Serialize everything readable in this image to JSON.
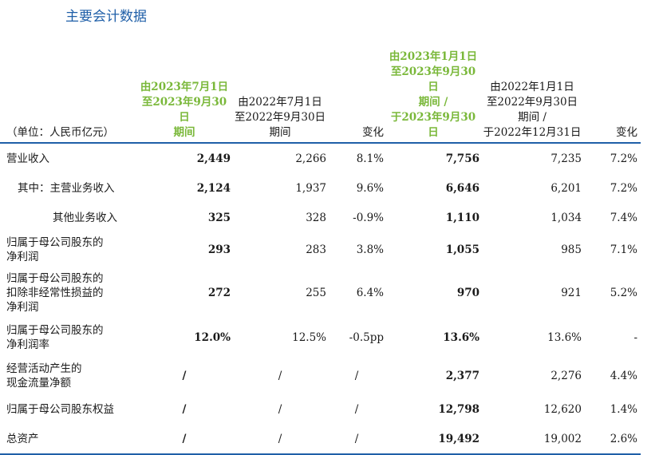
{
  "title": "主要会计数据",
  "header": {
    "unit": "（单位：人民币亿元）",
    "col1": [
      "由2023年7月1日",
      "至2023年9月30日",
      "期间"
    ],
    "col2": [
      "由2022年7月1日",
      "至2022年9月30日",
      "期间"
    ],
    "col3": "变化",
    "col4": [
      "由2023年1月1日",
      "至2023年9月30日",
      "期间 /",
      "于2023年9月30日"
    ],
    "col5": [
      "由2022年1月1日",
      "至2022年9月30日",
      "期间 /",
      "于2022年12月31日"
    ],
    "col6": "变化"
  },
  "rows": [
    {
      "label": [
        "营业收入"
      ],
      "indent": 0,
      "v": [
        "2,449",
        "2,266",
        "8.1%",
        "7,756",
        "7,235",
        "7.2%"
      ]
    },
    {
      "label": [
        "其中：主营业务收入"
      ],
      "indent": 1,
      "v": [
        "2,124",
        "1,937",
        "9.6%",
        "6,646",
        "6,201",
        "7.2%"
      ]
    },
    {
      "label": [
        "其他业务收入"
      ],
      "indent": 2,
      "v": [
        "325",
        "328",
        "-0.9%",
        "1,110",
        "1,034",
        "7.4%"
      ]
    },
    {
      "label": [
        "归属于母公司股东的",
        "净利润"
      ],
      "indent": 0,
      "v": [
        "293",
        "283",
        "3.8%",
        "1,055",
        "985",
        "7.1%"
      ]
    },
    {
      "label": [
        "归属于母公司股东的",
        "扣除非经常性损益的",
        "净利润"
      ],
      "indent": 0,
      "v": [
        "272",
        "255",
        "6.4%",
        "970",
        "921",
        "5.2%"
      ]
    },
    {
      "label": [
        "归属于母公司股东的",
        "净利润率"
      ],
      "indent": 0,
      "v": [
        "12.0%",
        "12.5%",
        "-0.5pp",
        "13.6%",
        "13.6%",
        "-"
      ]
    },
    {
      "label": [
        "经营活动产生的",
        "现金流量净额"
      ],
      "indent": 0,
      "v": [
        "/",
        "/",
        "/",
        "2,377",
        "2,276",
        "4.4%"
      ]
    },
    {
      "label": [
        "归属于母公司股东权益"
      ],
      "indent": 0,
      "v": [
        "/",
        "/",
        "/",
        "12,798",
        "12,620",
        "1.4%"
      ]
    },
    {
      "label": [
        "总资产"
      ],
      "indent": 0,
      "v": [
        "/",
        "/",
        "/",
        "19,492",
        "19,002",
        "2.6%"
      ]
    }
  ]
}
